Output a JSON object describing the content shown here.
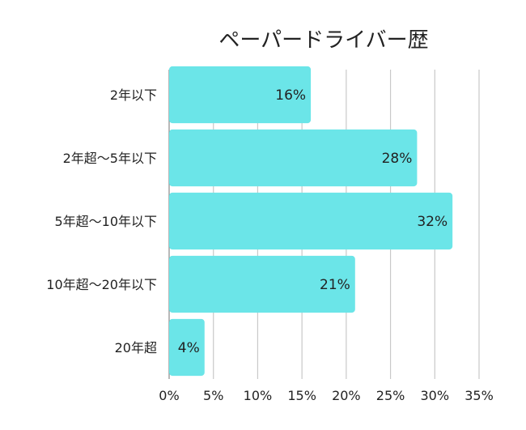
{
  "chart_data": {
    "type": "bar",
    "orientation": "horizontal",
    "title": "ペーパードライバー歴",
    "categories": [
      "2年以下",
      "2年超〜5年以下",
      "5年超〜10年以下",
      "10年超〜20年以下",
      "20年超"
    ],
    "values": [
      16,
      28,
      32,
      21,
      4
    ],
    "data_labels": [
      "16%",
      "28%",
      "32%",
      "21%",
      "4%"
    ],
    "x_ticks": [
      "0%",
      "5%",
      "10%",
      "15%",
      "20%",
      "25%",
      "30%",
      "35%"
    ],
    "xlim": [
      0,
      35
    ],
    "grid": true,
    "legend": "none",
    "bar_color": "#6be5e8"
  }
}
